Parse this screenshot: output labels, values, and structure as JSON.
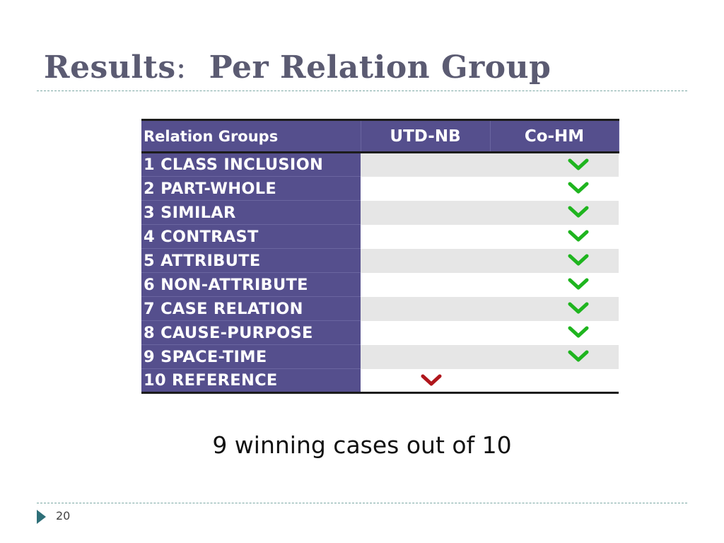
{
  "slide": {
    "title_main": "Results",
    "title_sep": ":",
    "title_sub": "Per Relation Group",
    "summary": "9 winning cases out of 10",
    "page_number": "20"
  },
  "table": {
    "headers": [
      "Relation Groups",
      "UTD-NB",
      "Co-HM"
    ],
    "rows": [
      {
        "group": "1 CLASS INCLUSION",
        "utd_nb": "",
        "co_hm": "check"
      },
      {
        "group": "2 PART-WHOLE",
        "utd_nb": "",
        "co_hm": "check"
      },
      {
        "group": "3 SIMILAR",
        "utd_nb": "",
        "co_hm": "check"
      },
      {
        "group": "4 CONTRAST",
        "utd_nb": "",
        "co_hm": "check"
      },
      {
        "group": "5 ATTRIBUTE",
        "utd_nb": "",
        "co_hm": "check"
      },
      {
        "group": "6 NON-ATTRIBUTE",
        "utd_nb": "",
        "co_hm": "check"
      },
      {
        "group": "7 CASE RELATION",
        "utd_nb": "",
        "co_hm": "check"
      },
      {
        "group": "8 CAUSE-PURPOSE",
        "utd_nb": "",
        "co_hm": "check"
      },
      {
        "group": "9 SPACE-TIME",
        "utd_nb": "",
        "co_hm": "check"
      },
      {
        "group": "10 REFERENCE",
        "utd_nb": "check",
        "co_hm": ""
      }
    ]
  },
  "colors": {
    "header_bg": "#554f8d",
    "title": "#5b5b72",
    "check_win_co_hm": "#1fb51f",
    "check_win_utd_nb": "#b0161c",
    "accent": "#2e6f78"
  },
  "icons": {
    "win_mark": "chevron-down-icon",
    "footer_bullet": "triangle-right-icon"
  }
}
